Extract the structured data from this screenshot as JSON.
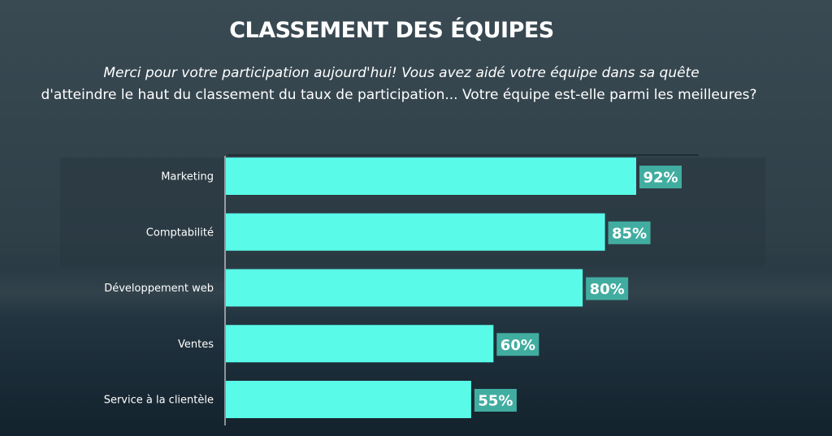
{
  "title": "CLASSEMENT DES ÉQUIPES",
  "subtitle_line1": "Merci pour votre participation aujourd'hui! Vous avez aidé votre équipe dans sa quête",
  "subtitle_line2": "d'atteindre le haut du classement du taux de participation... Votre équipe est-elle parmi les meilleures?",
  "colors": {
    "bar": "#59fbe8",
    "label_box": "#41ada0",
    "text": "#ffffff"
  },
  "chart_data": {
    "type": "bar",
    "orientation": "horizontal",
    "categories": [
      "Marketing",
      "Comptabilité",
      "Développement web",
      "Ventes",
      "Service à la clientèle"
    ],
    "values": [
      92,
      85,
      80,
      60,
      55
    ],
    "data_labels": [
      "92%",
      "85%",
      "80%",
      "60%",
      "55%"
    ],
    "xlim": [
      0,
      100
    ],
    "grid": false,
    "legend": "none"
  }
}
